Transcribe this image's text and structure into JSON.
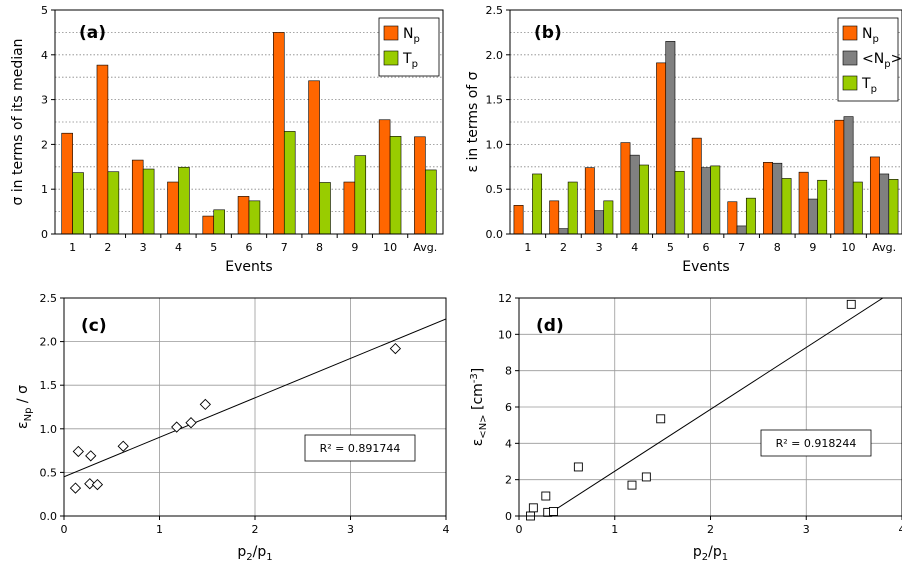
{
  "chart_data": [
    {
      "id": "a",
      "type": "bar",
      "panel_label": "(a)",
      "xlabel": "Events",
      "ylabel": "σ in terms of its median",
      "categories": [
        "1",
        "2",
        "3",
        "4",
        "5",
        "6",
        "7",
        "8",
        "9",
        "10",
        "Avg."
      ],
      "ylim": [
        0,
        5
      ],
      "yticks": [
        0,
        1,
        2,
        3,
        4,
        5
      ],
      "grid": "horizontal dotted",
      "legend_position": "top-right",
      "series": [
        {
          "name": "Np",
          "label_main": "N",
          "label_sub": "p",
          "color": "#ff6600",
          "values": [
            2.25,
            3.77,
            1.65,
            1.16,
            0.4,
            0.84,
            4.5,
            3.42,
            1.16,
            2.55,
            2.17
          ]
        },
        {
          "name": "Tp",
          "label_main": "T",
          "label_sub": "p",
          "color": "#99cc00",
          "values": [
            1.37,
            1.39,
            1.45,
            1.49,
            0.54,
            0.74,
            2.29,
            1.15,
            1.75,
            2.18,
            1.43
          ]
        }
      ]
    },
    {
      "id": "b",
      "type": "bar",
      "panel_label": "(b)",
      "xlabel": "Events",
      "ylabel": "ε in terms of σ",
      "categories": [
        "1",
        "2",
        "3",
        "4",
        "5",
        "6",
        "7",
        "8",
        "9",
        "10",
        "Avg."
      ],
      "ylim": [
        0,
        2.5
      ],
      "yticks": [
        0.0,
        0.5,
        1.0,
        1.5,
        2.0,
        2.5
      ],
      "grid": "horizontal dotted",
      "legend_position": "top-right",
      "series": [
        {
          "name": "Np",
          "label_main": "N",
          "label_sub": "p",
          "color": "#ff6600",
          "values": [
            0.32,
            0.37,
            0.74,
            1.02,
            1.91,
            1.07,
            0.36,
            0.8,
            0.69,
            1.27,
            0.86
          ]
        },
        {
          "name": "<Np>",
          "label_main": "<N",
          "label_sub": "p",
          "label_after": ">",
          "color": "#808080",
          "values": [
            0.0,
            0.06,
            0.26,
            0.88,
            2.15,
            0.74,
            0.09,
            0.79,
            0.39,
            1.31,
            0.67
          ]
        },
        {
          "name": "Tp",
          "label_main": "T",
          "label_sub": "p",
          "color": "#99cc00",
          "values": [
            0.67,
            0.58,
            0.37,
            0.77,
            0.7,
            0.76,
            0.4,
            0.62,
            0.6,
            0.58,
            0.61
          ]
        }
      ]
    },
    {
      "id": "c",
      "type": "scatter",
      "panel_label": "(c)",
      "xlabel_main": "p",
      "xlabel_sub1": "2",
      "xlabel_mid": "/p",
      "xlabel_sub2": "1",
      "ylabel_main": "ε",
      "ylabel_sub": "Np",
      "ylabel_after": " / σ",
      "xlim": [
        0,
        4
      ],
      "ylim": [
        0,
        2.5
      ],
      "xticks": [
        0,
        1,
        2,
        3,
        4
      ],
      "yticks": [
        0.0,
        0.5,
        1.0,
        1.5,
        2.0,
        2.5
      ],
      "grid": "both",
      "marker": "diamond",
      "points": [
        [
          0.12,
          0.32
        ],
        [
          0.15,
          0.74
        ],
        [
          0.27,
          0.37
        ],
        [
          0.28,
          0.69
        ],
        [
          0.35,
          0.36
        ],
        [
          0.62,
          0.8
        ],
        [
          1.18,
          1.02
        ],
        [
          1.33,
          1.07
        ],
        [
          1.48,
          1.28
        ],
        [
          3.47,
          1.92
        ]
      ],
      "fit": {
        "x": [
          0,
          4
        ],
        "y": [
          0.45,
          2.26
        ]
      },
      "annotation": "R² = 0.891744"
    },
    {
      "id": "d",
      "type": "scatter",
      "panel_label": "(d)",
      "xlabel_main": "p",
      "xlabel_sub1": "2",
      "xlabel_mid": "/p",
      "xlabel_sub2": "1",
      "ylabel_main": "ε",
      "ylabel_sub": "<N>",
      "ylabel_after": " [cm",
      "ylabel_sup": "-3",
      "ylabel_end": "]",
      "xlim": [
        0,
        4
      ],
      "ylim": [
        0,
        12
      ],
      "xticks": [
        0,
        1,
        2,
        3,
        4
      ],
      "yticks": [
        0,
        2,
        4,
        6,
        8,
        10,
        12
      ],
      "grid": "both",
      "marker": "square",
      "points": [
        [
          0.12,
          0.0
        ],
        [
          0.15,
          0.45
        ],
        [
          0.28,
          1.1
        ],
        [
          0.3,
          0.2
        ],
        [
          0.36,
          0.25
        ],
        [
          0.62,
          2.7
        ],
        [
          1.18,
          1.7
        ],
        [
          1.33,
          2.15
        ],
        [
          1.48,
          5.35
        ],
        [
          3.47,
          11.65
        ]
      ],
      "fit": {
        "x": [
          0.1,
          3.8
        ],
        "y": [
          -0.6,
          12.0
        ]
      },
      "annotation": "R² = 0.918244"
    }
  ]
}
